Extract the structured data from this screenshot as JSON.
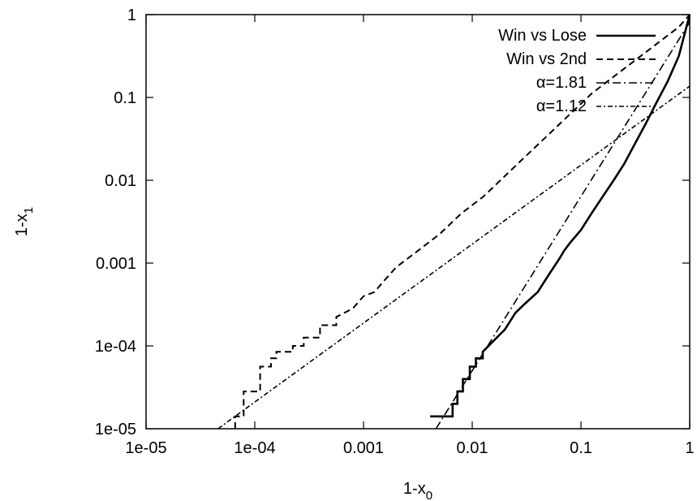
{
  "chart_data": {
    "type": "line",
    "xlabel": "1-x",
    "xlabel_sub": "0",
    "ylabel": "1-x",
    "ylabel_sub": "1",
    "xscale": "log",
    "yscale": "log",
    "xlim": [
      1e-05,
      1
    ],
    "ylim": [
      1e-05,
      1
    ],
    "grid": false,
    "legend_position": "top-right",
    "x_ticks": [
      {
        "value": 1e-05,
        "label": "1e-05"
      },
      {
        "value": 0.0001,
        "label": "1e-04"
      },
      {
        "value": 0.001,
        "label": "0.001"
      },
      {
        "value": 0.01,
        "label": "0.01"
      },
      {
        "value": 0.1,
        "label": "0.1"
      },
      {
        "value": 1,
        "label": "1"
      }
    ],
    "y_ticks": [
      {
        "value": 1e-05,
        "label": "1e-05"
      },
      {
        "value": 0.0001,
        "label": "1e-04"
      },
      {
        "value": 0.001,
        "label": "0.001"
      },
      {
        "value": 0.01,
        "label": "0.01"
      },
      {
        "value": 0.1,
        "label": "0.1"
      },
      {
        "value": 1,
        "label": "1"
      }
    ],
    "series": [
      {
        "name": "Win vs Lose",
        "style": "solid",
        "x": [
          0.0041,
          0.0066,
          0.0066,
          0.0073,
          0.0073,
          0.0082,
          0.0082,
          0.0095,
          0.0095,
          0.0108,
          0.0108,
          0.0125,
          0.0125,
          0.0162,
          0.02,
          0.025,
          0.03,
          0.04,
          0.05,
          0.063,
          0.07,
          0.08,
          0.1,
          0.125,
          0.158,
          0.2,
          0.25,
          0.316,
          0.4,
          0.5,
          0.63,
          0.794,
          1.0
        ],
        "y": [
          1.41e-05,
          1.41e-05,
          2e-05,
          2e-05,
          2.82e-05,
          2.82e-05,
          3.98e-05,
          3.98e-05,
          5.62e-05,
          5.62e-05,
          7.08e-05,
          7.08e-05,
          8.5e-05,
          0.00012,
          0.000158,
          0.000251,
          0.000316,
          0.000447,
          0.000708,
          0.00112,
          0.00141,
          0.00178,
          0.00251,
          0.00398,
          0.00631,
          0.01,
          0.0158,
          0.0282,
          0.0501,
          0.0891,
          0.158,
          0.316,
          1.0
        ]
      },
      {
        "name": "Win vs 2nd",
        "style": "dashed",
        "x": [
          6.6e-05,
          6.6e-05,
          7.9e-05,
          7.9e-05,
          0.000112,
          0.000112,
          0.000141,
          0.000141,
          0.000158,
          0.000158,
          0.000224,
          0.000224,
          0.000282,
          0.000282,
          0.000398,
          0.000398,
          0.000562,
          0.000562,
          0.000794,
          0.001,
          0.00126,
          0.00158,
          0.002,
          0.00251,
          0.00316,
          0.00501,
          0.00794,
          0.0126,
          0.0199,
          0.0316,
          0.0501,
          0.0794,
          0.126,
          0.1995,
          0.316,
          0.501,
          0.794,
          1.0
        ],
        "y": [
          1e-05,
          1.41e-05,
          1.41e-05,
          2.82e-05,
          2.82e-05,
          5.62e-05,
          5.62e-05,
          7.08e-05,
          7.08e-05,
          8.5e-05,
          8.5e-05,
          0.0001,
          0.0001,
          0.000126,
          0.000126,
          0.000178,
          0.000178,
          0.000224,
          0.000282,
          0.000398,
          0.000447,
          0.000631,
          0.000891,
          0.00112,
          0.00141,
          0.00224,
          0.00398,
          0.00631,
          0.0112,
          0.02,
          0.0355,
          0.0631,
          0.112,
          0.178,
          0.282,
          0.447,
          0.708,
          1.0
        ]
      },
      {
        "name": "α=1.81",
        "style": "dashdot",
        "x": [
          0.00464,
          1.0
        ],
        "y": [
          1e-05,
          0.81
        ]
      },
      {
        "name": "α=1.12",
        "style": "dashdot-dense",
        "x": [
          4.59e-05,
          1.0
        ],
        "y": [
          1e-05,
          0.137
        ]
      }
    ]
  }
}
